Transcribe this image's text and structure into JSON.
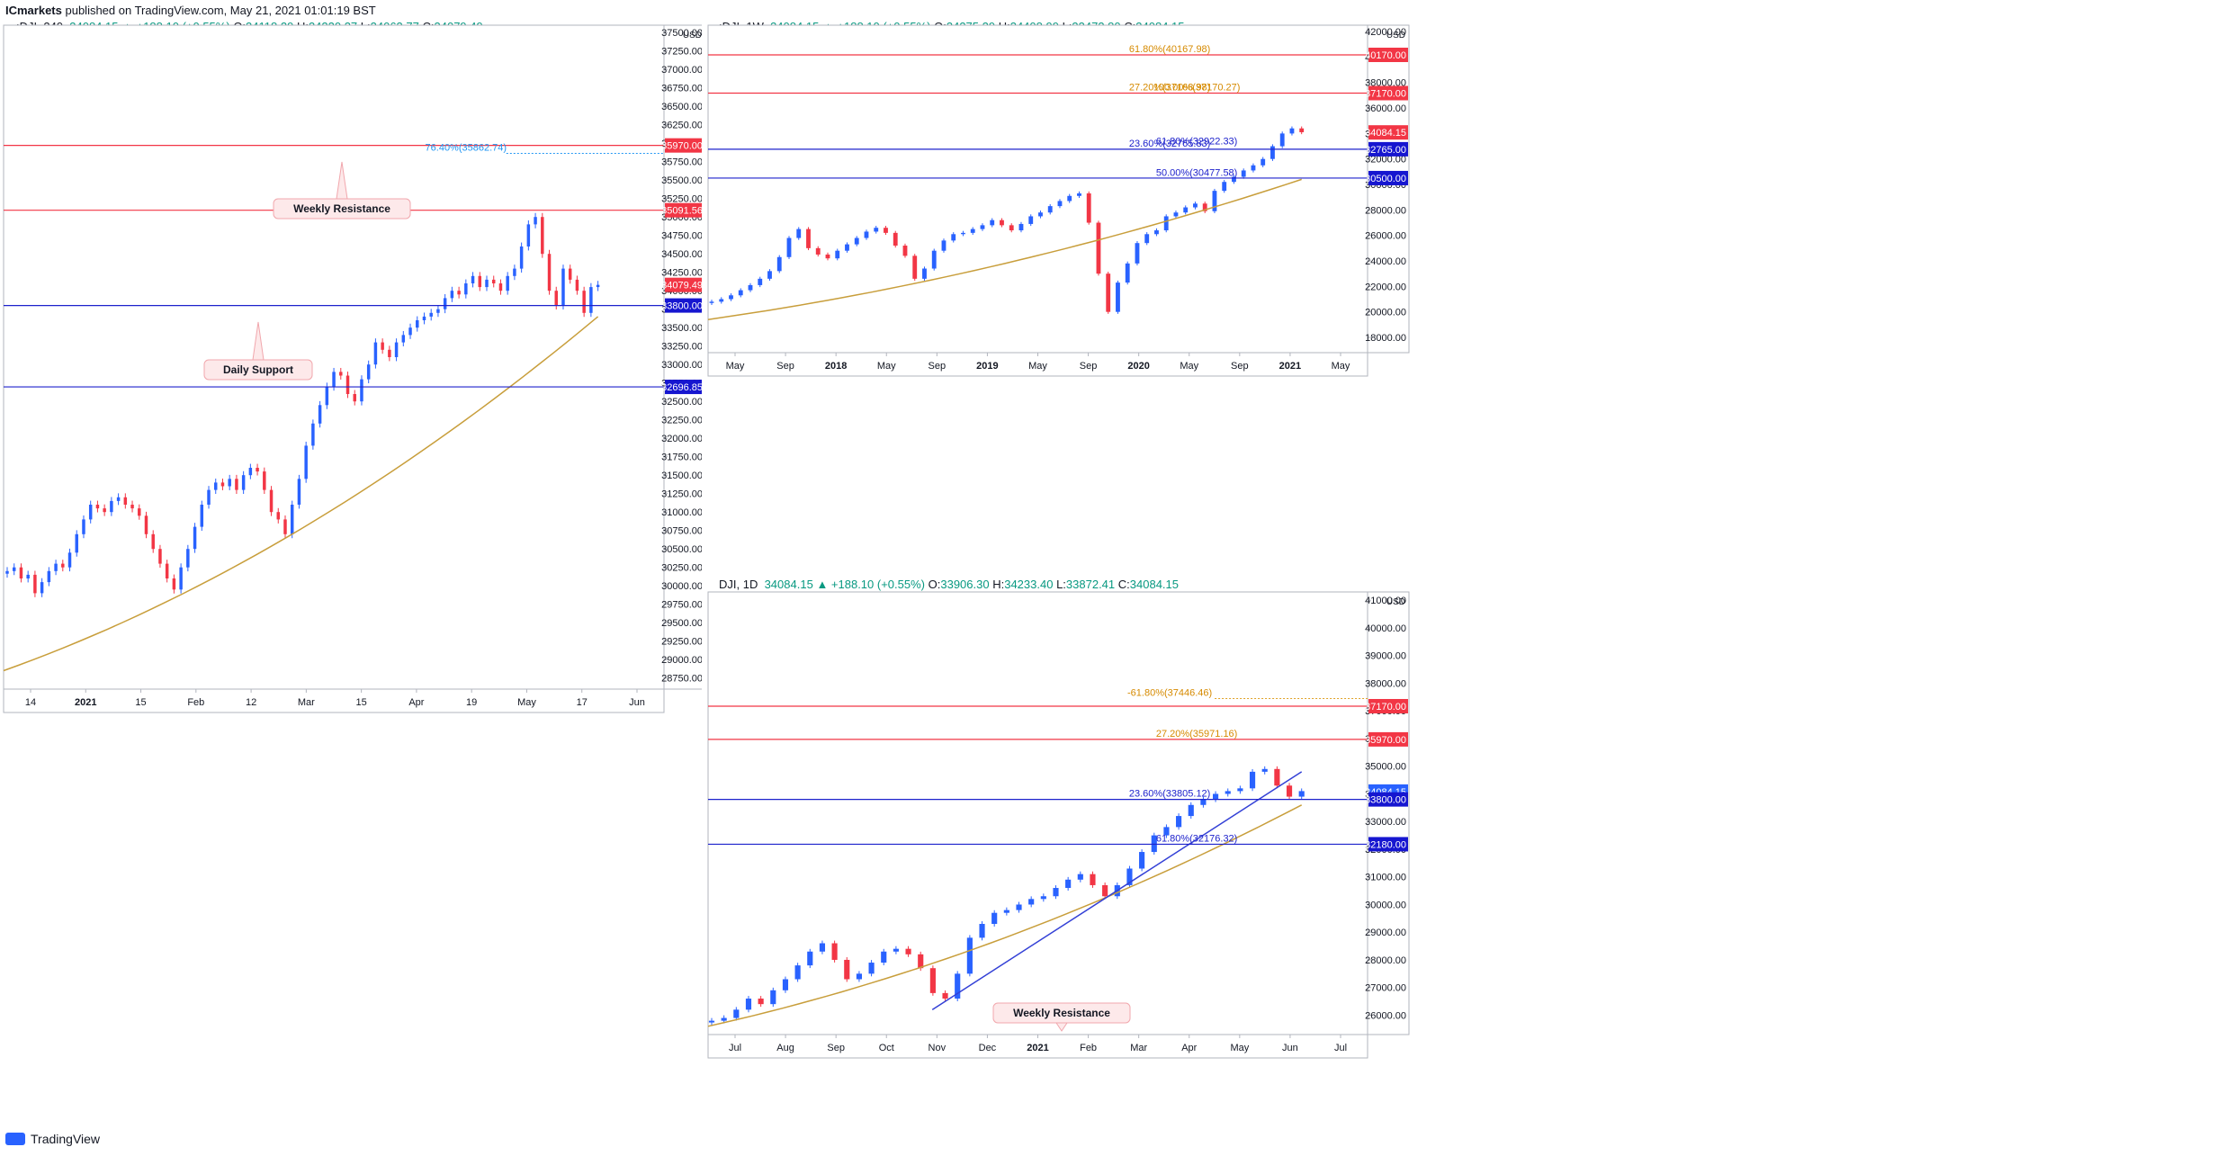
{
  "publish": {
    "brand": "ICmarkets",
    "text": " published on TradingView.com, May 21, 2021 01:01:19 BST"
  },
  "footer": {
    "label": "TradingView"
  },
  "colors": {
    "up": "#2962ff",
    "down": "#f23645",
    "ma": "#c89e3b",
    "support": "#1e22cc",
    "resistance": "#f23645",
    "fib": "#e0a125",
    "grid": "#e9ecf2"
  },
  "panels": [
    {
      "id": "p240",
      "header": {
        "symbol": ":DJI, 240",
        "last": "34084.15",
        "change": "▲ +188.10 (+0.55%)",
        "o_lab": "O:",
        "o": "34118.29",
        "h_lab": "H:",
        "h": "34220.37",
        "l_lab": "L:",
        "l": "34063.77",
        "c_lab": "C:",
        "c": "34079.49"
      },
      "axis_currency": "USD",
      "yticks": [
        "37500.00",
        "37250.00",
        "37000.00",
        "36750.00",
        "36500.00",
        "36250.00",
        "36000.00",
        "35750.00",
        "35500.00",
        "35250.00",
        "35000.00",
        "34750.00",
        "34500.00",
        "34250.00",
        "34000.00",
        "33750.00",
        "33500.00",
        "33250.00",
        "33000.00",
        "32750.00",
        "32500.00",
        "32250.00",
        "32000.00",
        "31750.00",
        "31500.00",
        "31250.00",
        "31000.00",
        "30750.00",
        "30500.00",
        "30250.00",
        "30000.00",
        "29750.00",
        "29500.00",
        "29250.00",
        "29000.00",
        "28750.00"
      ],
      "xticks": [
        "14",
        "2021",
        "15",
        "Feb",
        "12",
        "Mar",
        "15",
        "Apr",
        "19",
        "May",
        "17",
        "Jun"
      ],
      "levels": [
        {
          "label": "35970.00",
          "kind": "resistance",
          "y": 35970
        },
        {
          "label": "35091.56",
          "kind": "resistance",
          "y": 35091.56
        },
        {
          "label": "33800.00",
          "kind": "support",
          "y": 33800
        },
        {
          "label": "32696.85",
          "kind": "support",
          "y": 32696.85
        }
      ],
      "price_tag": {
        "label": "34079.49",
        "y": 34079.49
      },
      "fib_text": [
        {
          "label": "76.40%(35862.74)",
          "y": 35862.74
        }
      ],
      "callouts": [
        {
          "label": "Weekly Resistance"
        },
        {
          "label": "Daily Support"
        }
      ]
    },
    {
      "id": "p1w",
      "header": {
        "symbol": ":DJI, 1W",
        "last": "34084.15",
        "change": "▲ +188.10 (+0.55%)",
        "o_lab": "O:",
        "o": "34375.29",
        "h_lab": "H:",
        "h": "34408.99",
        "l_lab": "L:",
        "l": "33473.80",
        "c_lab": "C:",
        "c": "34084.15"
      },
      "axis_currency": "USD",
      "yticks": [
        "42000.00",
        "40000.00",
        "38000.00",
        "36000.00",
        "34000.00",
        "32000.00",
        "30000.00",
        "28000.00",
        "26000.00",
        "24000.00",
        "22000.00",
        "20000.00",
        "18000.00"
      ],
      "xticks": [
        "May",
        "Sep",
        "2018",
        "May",
        "Sep",
        "2019",
        "May",
        "Sep",
        "2020",
        "May",
        "Sep",
        "2021",
        "May"
      ],
      "levels": [
        {
          "label": "40170.00",
          "kind": "resistance",
          "y": 40170
        },
        {
          "label": "37170.00",
          "kind": "resistance",
          "y": 37170
        },
        {
          "label": "32765.00",
          "kind": "support",
          "y": 32765
        },
        {
          "label": "30500.00",
          "kind": "support",
          "y": 30500
        }
      ],
      "price_tag": {
        "label": "34084.15",
        "y": 34084.15
      },
      "fib_text": [
        {
          "label": "61.80%(40167.98)",
          "y": 40167.98
        },
        {
          "label": "100.00%(37170.27)",
          "y": 37170.27
        },
        {
          "label": "27.20%(37168.98)",
          "y": 37168.98
        },
        {
          "label": "61.80%(32922.33)",
          "y": 32922.33
        },
        {
          "label": "23.60%(32765.83)",
          "y": 32765.83
        },
        {
          "label": "50.00%(30477.58)",
          "y": 30477.58
        }
      ]
    },
    {
      "id": "p1d",
      "header": {
        "symbol": "DJI, 1D",
        "last": "34084.15",
        "change": "▲ +188.10 (+0.55%)",
        "o_lab": "O:",
        "o": "33906.30",
        "h_lab": "H:",
        "h": "34233.40",
        "l_lab": "L:",
        "l": "33872.41",
        "c_lab": "C:",
        "c": "34084.15"
      },
      "axis_currency": "USD",
      "yticks": [
        "41000.00",
        "40000.00",
        "39000.00",
        "38000.00",
        "37000.00",
        "36000.00",
        "35000.00",
        "34000.00",
        "33000.00",
        "32000.00",
        "31000.00",
        "30000.00",
        "29000.00",
        "28000.00",
        "27000.00",
        "26000.00"
      ],
      "xticks": [
        "Jul",
        "Aug",
        "Sep",
        "Oct",
        "Nov",
        "Dec",
        "2021",
        "Feb",
        "Mar",
        "Apr",
        "May",
        "Jun",
        "Jul"
      ],
      "levels": [
        {
          "label": "37170.00",
          "kind": "resistance",
          "y": 37170
        },
        {
          "label": "35970.00",
          "kind": "resistance",
          "y": 35970
        },
        {
          "label": "34084.15",
          "kind": "price",
          "y": 34084.15
        },
        {
          "label": "33800.00",
          "kind": "support",
          "y": 33800
        },
        {
          "label": "32180.00",
          "kind": "support",
          "y": 32180
        }
      ],
      "fib_text": [
        {
          "label": "-61.80%(37446.46)",
          "y": 37446.46
        },
        {
          "label": "27.20%(35971.16)",
          "y": 35971.16
        },
        {
          "label": "23.60%(33805.12)",
          "y": 33805.12
        },
        {
          "label": "61.80%(32176.32)",
          "y": 32176.32
        }
      ],
      "callouts": [
        {
          "label": "Weekly Resistance"
        }
      ]
    }
  ],
  "chart_data": [
    {
      "type": "candlestick",
      "title": "",
      "symbol": ":DJI, 240",
      "ylim": [
        28600,
        37600
      ],
      "xlabel": "",
      "ylabel": "",
      "series": [
        {
          "name": "",
          "values": [
            30200,
            30250,
            30100,
            30150,
            29900,
            30050,
            30200,
            30300,
            30250,
            30450,
            30700,
            30900,
            31100,
            31050,
            31000,
            31150,
            31200,
            31100,
            31050,
            30950,
            30700,
            30500,
            30300,
            30100,
            29950,
            30250,
            30500,
            30800,
            31100,
            31300,
            31400,
            31350,
            31450,
            31300,
            31500,
            31600,
            31550,
            31300,
            31000,
            30900,
            30700,
            31100,
            31450,
            31900,
            32200,
            32450,
            32700,
            32900,
            32850,
            32600,
            32500,
            32800,
            33000,
            33300,
            33200,
            33100,
            33300,
            33400,
            33500,
            33600,
            33650,
            33700,
            33750,
            33900,
            34000,
            33950,
            34100,
            34200,
            34050,
            34150,
            34100,
            34000,
            34200,
            34300,
            34600,
            34900,
            35000,
            34500,
            34000,
            33800,
            34300,
            34150,
            34000,
            33700,
            34050,
            34080
          ]
        }
      ],
      "moving_average": {
        "name": "",
        "from": 28850,
        "to": 33650
      }
    },
    {
      "type": "candlestick",
      "title": "",
      "symbol": ":DJI, 1W",
      "ylim": [
        16800,
        42500
      ],
      "series": [
        {
          "name": "",
          "values": [
            20800,
            21000,
            21300,
            21700,
            22100,
            22600,
            23200,
            24300,
            25800,
            26500,
            25000,
            24500,
            24200,
            24800,
            25300,
            25800,
            26300,
            26600,
            26200,
            25200,
            24400,
            22600,
            23400,
            24800,
            25600,
            26100,
            26200,
            26500,
            26800,
            27200,
            26800,
            26400,
            26900,
            27500,
            27800,
            28300,
            28700,
            29100,
            29300,
            27000,
            23000,
            20000,
            22300,
            23800,
            25400,
            26100,
            26400,
            27500,
            27800,
            28200,
            28500,
            27900,
            29500,
            30200,
            30600,
            31100,
            31500,
            32000,
            33000,
            34000,
            34400,
            34100
          ]
        }
      ],
      "moving_average": {
        "name": "",
        "from": 19400,
        "to": 30400
      }
    },
    {
      "type": "candlestick",
      "title": "",
      "symbol": "DJI, 1D",
      "ylim": [
        25300,
        41300
      ],
      "series": [
        {
          "name": "",
          "values": [
            25800,
            25900,
            26200,
            26600,
            26400,
            26900,
            27300,
            27800,
            28300,
            28600,
            28000,
            27300,
            27500,
            27900,
            28300,
            28400,
            28200,
            27700,
            26800,
            26600,
            27500,
            28800,
            29300,
            29700,
            29800,
            30000,
            30200,
            30300,
            30600,
            30900,
            31100,
            30700,
            30300,
            30700,
            31300,
            31900,
            32500,
            32800,
            33200,
            33600,
            33800,
            34000,
            34100,
            34200,
            34800,
            34900,
            34300,
            33900,
            34100
          ]
        }
      ],
      "moving_average": {
        "name": "",
        "from": 25600,
        "to": 33600
      },
      "trendline": {
        "from": 26200,
        "to": 34800
      }
    }
  ]
}
